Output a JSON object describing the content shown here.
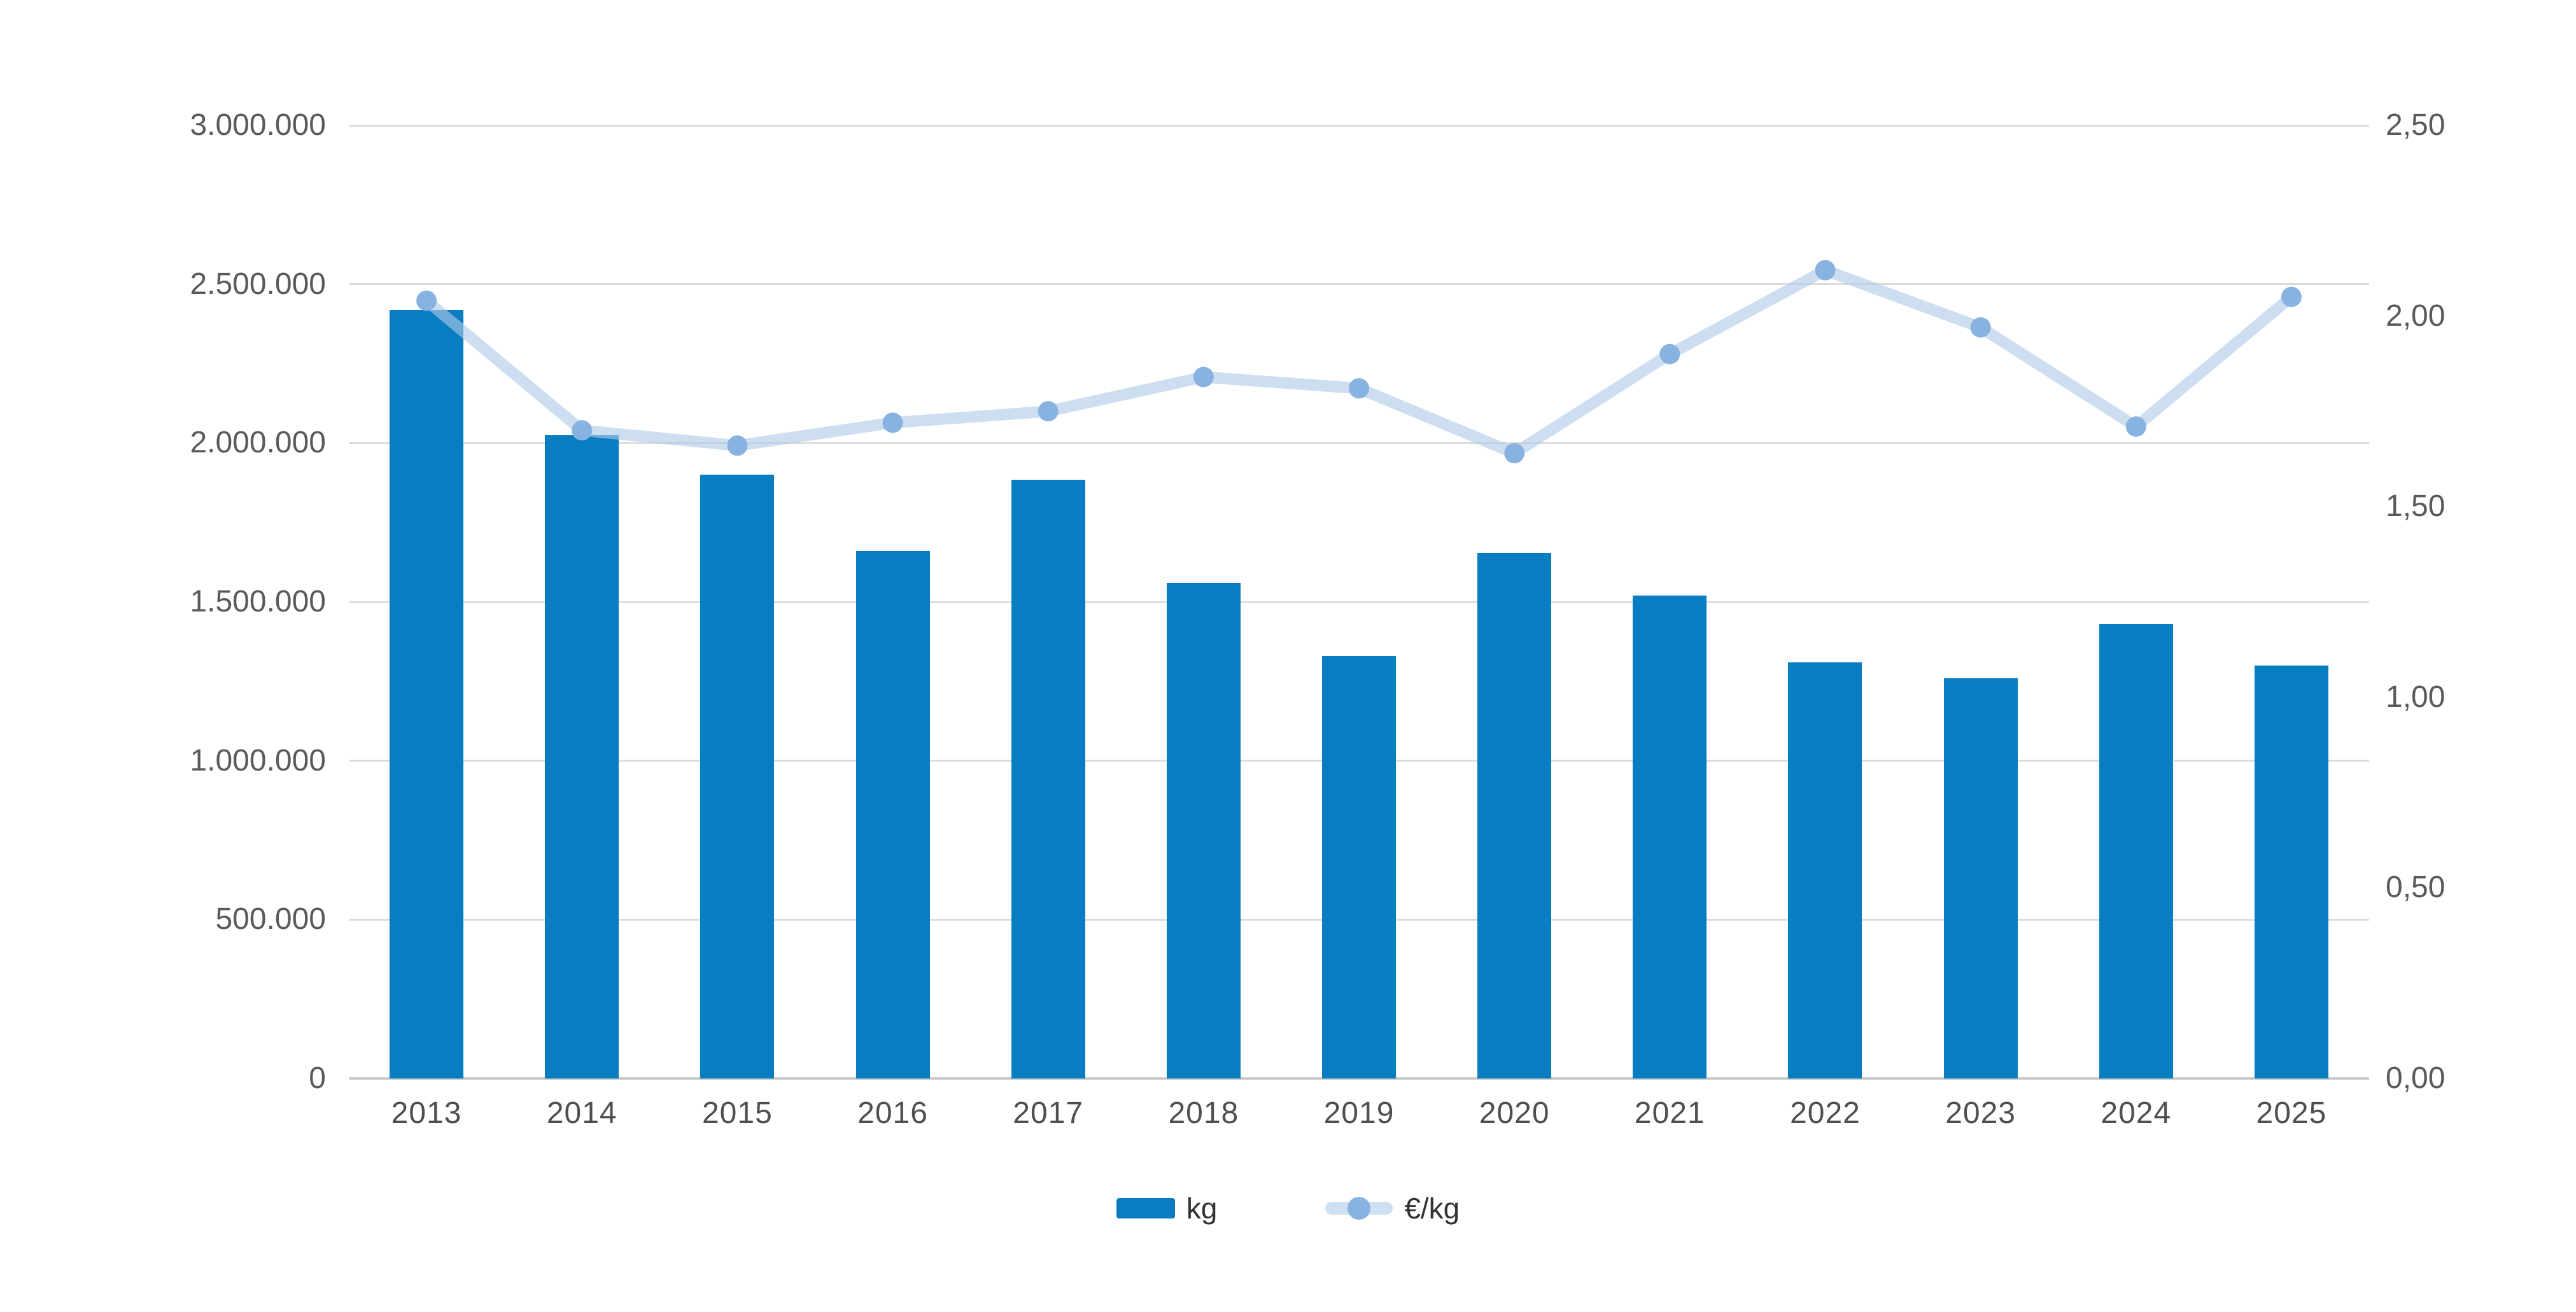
{
  "chart_data": {
    "type": "bar",
    "subtype": "bar-line-combo",
    "categories": [
      "2013",
      "2014",
      "2015",
      "2016",
      "2017",
      "2018",
      "2019",
      "2020",
      "2021",
      "2022",
      "2023",
      "2024",
      "2025"
    ],
    "series": [
      {
        "name": "kg",
        "type": "bar",
        "axis": "left",
        "values": [
          2420000,
          2025000,
          1900000,
          1660000,
          1885000,
          1560000,
          1330000,
          1655000,
          1520000,
          1310000,
          1260000,
          1430000,
          1300000
        ]
      },
      {
        "name": "€/kg",
        "type": "line",
        "axis": "right",
        "values": [
          2.04,
          1.7,
          1.66,
          1.72,
          1.75,
          1.84,
          1.81,
          1.64,
          1.9,
          2.12,
          1.97,
          1.71,
          2.05
        ]
      }
    ],
    "left_axis": {
      "min": 0,
      "max": 3000000,
      "step": 500000,
      "tick_labels": [
        "3.000.000",
        "2.500.000",
        "2.000.000",
        "1.500.000",
        "1.000.000",
        "500.000",
        "0"
      ]
    },
    "right_axis": {
      "min": 0,
      "max": 2.5,
      "step": 0.5,
      "tick_labels": [
        "2,50",
        "2,00",
        "1,50",
        "1,00",
        "0,50",
        "0,00"
      ]
    },
    "grid": true,
    "legend_position": "bottom",
    "colors": {
      "bar": "#087dc2",
      "line": "rgba(174,202,233,0.62)",
      "line_solid": "#cfe0f2",
      "dot": "#88b2e0",
      "grid": "#dcdcdc",
      "axis": "#cccccc",
      "tick_text": "#5a5a5a",
      "year_text": "#4f4f4f",
      "legend_text": "#333333"
    }
  },
  "legend": {
    "kg_label": "kg",
    "eur_label": "€/kg"
  }
}
